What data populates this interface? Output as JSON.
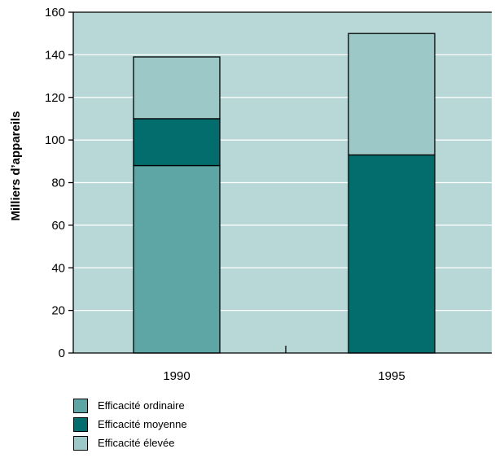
{
  "chart_data": {
    "type": "bar",
    "stacked": true,
    "categories": [
      "1990",
      "1995"
    ],
    "series": [
      {
        "name": "Efficacité ordinaire",
        "values": [
          88,
          0
        ],
        "color": "#5ea6a6"
      },
      {
        "name": "Efficacité moyenne",
        "values": [
          22,
          93
        ],
        "color": "#036c6c"
      },
      {
        "name": "Efficacité élevée",
        "values": [
          29,
          57
        ],
        "color": "#9cc8c8"
      }
    ],
    "title": "",
    "xlabel": "",
    "ylabel": "Milliers d’appareils",
    "ylim": [
      0,
      160
    ],
    "yticks": [
      0,
      20,
      40,
      60,
      80,
      100,
      120,
      140,
      160
    ],
    "grid": true,
    "plot_background": "#b8d8d8",
    "gridline_color": "#ffffff",
    "legend_position": "bottom-left"
  }
}
